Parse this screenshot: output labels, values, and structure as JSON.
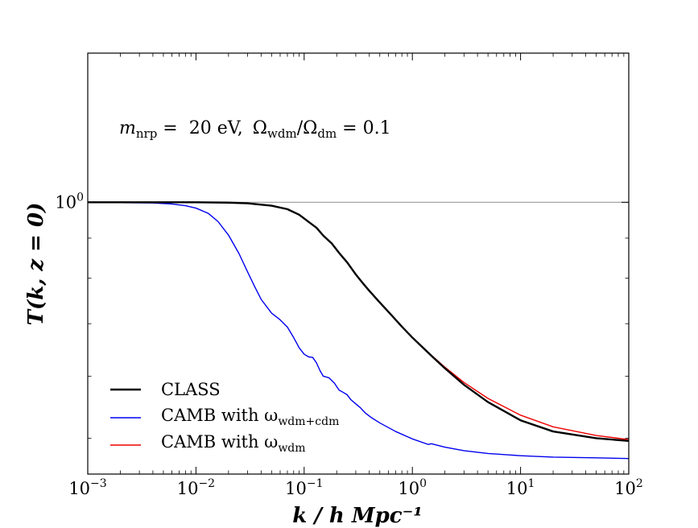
{
  "chart_data": {
    "type": "line",
    "xscale": "log",
    "yscale": "log",
    "xlim": [
      0.001,
      100
    ],
    "ylim": [
      0.45,
      1.55
    ],
    "grid": false,
    "legend_position": "lower-left",
    "xlabel": "k / h Mpc⁻¹",
    "ylabel": "T(k, z = 0)",
    "annotation": {
      "m_label": "m",
      "m_sub": "nrp",
      "m_value": " =  20 eV,",
      "omega_num": "Ω",
      "omega_num_sub": "wdm",
      "omega_slash": "/Ω",
      "omega_den_sub": "dm",
      "omega_value": " = 0.1"
    },
    "x_ticks": [
      {
        "value": 0.001,
        "base": "10",
        "exp": "−3"
      },
      {
        "value": 0.01,
        "base": "10",
        "exp": "−2"
      },
      {
        "value": 0.1,
        "base": "10",
        "exp": "−1"
      },
      {
        "value": 1,
        "base": "10",
        "exp": "0"
      },
      {
        "value": 10,
        "base": "10",
        "exp": "1"
      },
      {
        "value": 100,
        "base": "10",
        "exp": "2"
      }
    ],
    "y_ticks": [
      {
        "value": 1,
        "base": "10",
        "exp": "0"
      }
    ],
    "reference_line": {
      "y": 1,
      "color": "#999999"
    },
    "series": [
      {
        "name": "CLASS",
        "color": "#000000",
        "width": 2.4,
        "x": [
          0.001,
          0.003,
          0.01,
          0.02,
          0.03,
          0.05,
          0.07,
          0.09,
          0.11,
          0.13,
          0.15,
          0.18,
          0.21,
          0.25,
          0.3,
          0.35,
          0.4,
          0.5,
          0.6,
          0.8,
          1.0,
          1.5,
          2,
          3,
          5,
          10,
          20,
          50,
          100
        ],
        "y": [
          1.0,
          1.0,
          1.0,
          0.999,
          0.997,
          0.99,
          0.98,
          0.964,
          0.944,
          0.928,
          0.907,
          0.886,
          0.862,
          0.838,
          0.809,
          0.788,
          0.771,
          0.745,
          0.725,
          0.694,
          0.672,
          0.637,
          0.614,
          0.585,
          0.556,
          0.527,
          0.51,
          0.5,
          0.496
        ]
      },
      {
        "name": "CAMB with ω",
        "name_sub": "wdm+cdm",
        "color": "#0000ee",
        "width": 1.4,
        "x": [
          0.001,
          0.002,
          0.004,
          0.006,
          0.008,
          0.01,
          0.013,
          0.016,
          0.02,
          0.025,
          0.03,
          0.035,
          0.04,
          0.05,
          0.06,
          0.07,
          0.08,
          0.09,
          0.1,
          0.11,
          0.12,
          0.13,
          0.14,
          0.15,
          0.17,
          0.19,
          0.21,
          0.23,
          0.25,
          0.27,
          0.3,
          0.33,
          0.37,
          0.42,
          0.5,
          0.7,
          1.0,
          1.4,
          1.5,
          2,
          3,
          5,
          10,
          20,
          50,
          100
        ],
        "y": [
          1.0,
          0.999,
          0.998,
          0.995,
          0.99,
          0.983,
          0.968,
          0.945,
          0.908,
          0.86,
          0.815,
          0.78,
          0.752,
          0.722,
          0.708,
          0.693,
          0.672,
          0.652,
          0.64,
          0.635,
          0.634,
          0.624,
          0.61,
          0.6,
          0.597,
          0.588,
          0.576,
          0.572,
          0.568,
          0.56,
          0.553,
          0.547,
          0.538,
          0.531,
          0.523,
          0.51,
          0.499,
          0.491,
          0.492,
          0.487,
          0.482,
          0.478,
          0.475,
          0.473,
          0.472,
          0.471
        ]
      },
      {
        "name": "CAMB with ω",
        "name_sub": "wdm",
        "color": "#ee0000",
        "width": 1.4,
        "x": [
          0.001,
          0.003,
          0.01,
          0.02,
          0.03,
          0.05,
          0.07,
          0.09,
          0.11,
          0.13,
          0.15,
          0.18,
          0.21,
          0.25,
          0.3,
          0.35,
          0.4,
          0.5,
          0.6,
          0.8,
          1.0,
          1.5,
          2,
          3,
          5,
          10,
          20,
          50,
          100
        ],
        "y": [
          1.0,
          1.0,
          1.0,
          0.999,
          0.997,
          0.99,
          0.98,
          0.964,
          0.944,
          0.928,
          0.907,
          0.886,
          0.862,
          0.838,
          0.809,
          0.788,
          0.771,
          0.745,
          0.725,
          0.694,
          0.672,
          0.638,
          0.616,
          0.589,
          0.562,
          0.535,
          0.517,
          0.504,
          0.498
        ]
      }
    ]
  }
}
